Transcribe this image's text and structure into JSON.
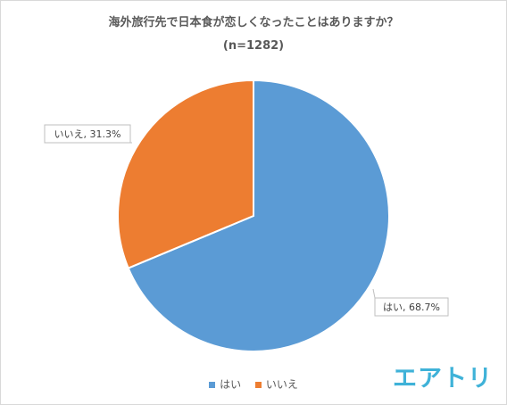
{
  "chart_data": {
    "type": "pie",
    "title": "海外旅行先で日本食が恋しくなったことはありますか？",
    "subtitle": "(n=1282)",
    "categories": [
      "はい",
      "いいえ"
    ],
    "values": [
      68.7,
      31.3
    ],
    "colors": [
      "#5b9bd5",
      "#ed7d31"
    ],
    "data_labels": [
      "はい, 68.7%",
      "いいえ, 31.3%"
    ],
    "legend_position": "bottom"
  },
  "brand": {
    "logo_text": "エアトリ"
  }
}
